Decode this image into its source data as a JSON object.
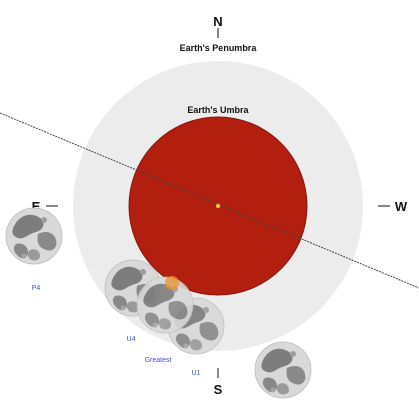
{
  "diagram": {
    "compass": {
      "north": "N",
      "south": "S",
      "east": "E",
      "west": "W"
    },
    "zones": {
      "penumbra": "Earth's Penumbra",
      "umbra": "Earth's Umbra"
    },
    "contacts": {
      "p4": "P4",
      "u4": "U4",
      "greatest": "Greatest",
      "u1": "U1"
    },
    "colors": {
      "background": "#ffffff",
      "penumbra": "#ececec",
      "umbra": "#b21f0e",
      "umbra_edge": "#8a1508",
      "path_line": "#444444",
      "contact_label": "#3a55c8",
      "moon_base": "#d9d9d9",
      "moon_maria": "#7d7d7d",
      "shadow_center": "#f1c232"
    },
    "moon_positions": [
      "p4",
      "u4",
      "greatest",
      "u1"
    ]
  }
}
